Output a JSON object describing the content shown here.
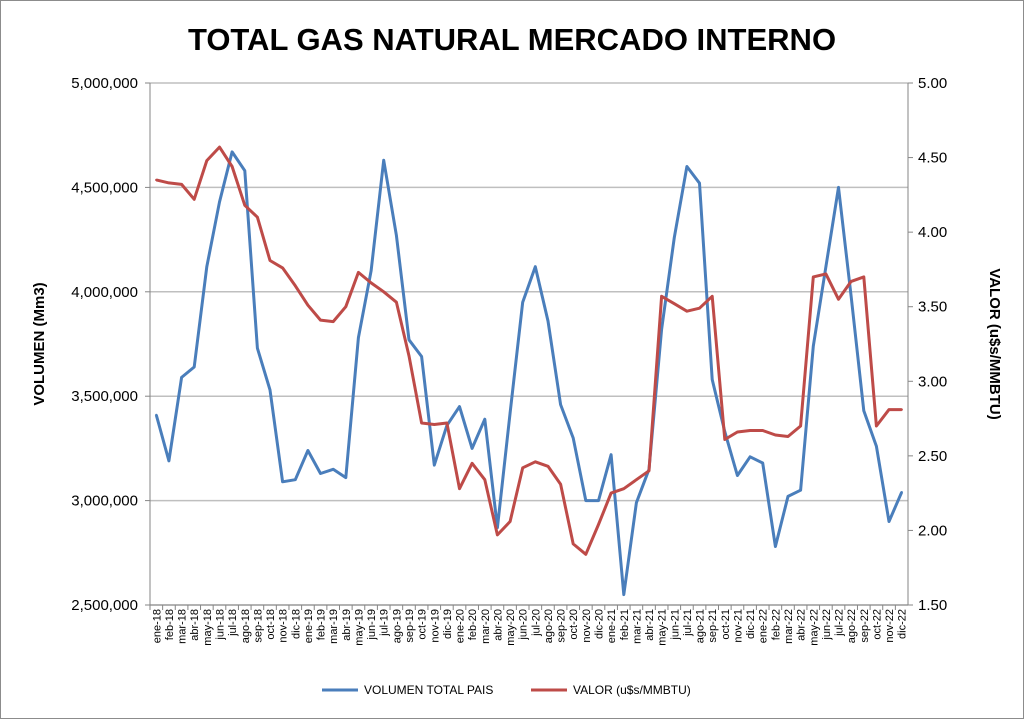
{
  "chart_data": {
    "type": "line",
    "title": "TOTAL GAS NATURAL MERCADO INTERNO",
    "ylabel": "VOLUMEN (Mm3)",
    "y2label": "VALOR (u$s/MMBTU)",
    "xlabel": "",
    "ylim": [
      2500000,
      5000000
    ],
    "y2lim": [
      1.5,
      5.0
    ],
    "yticks": [
      "2,500,000",
      "3,000,000",
      "3,500,000",
      "4,000,000",
      "4,500,000",
      "5,000,000"
    ],
    "y2ticks": [
      "1.50",
      "2.00",
      "2.50",
      "3.00",
      "3.50",
      "4.00",
      "4.50",
      "5.00"
    ],
    "grid": true,
    "legend_position": "bottom",
    "categories": [
      "ene-18",
      "feb-18",
      "mar-18",
      "abr-18",
      "may-18",
      "jun-18",
      "jul-18",
      "ago-18",
      "sep-18",
      "oct-18",
      "nov-18",
      "dic-18",
      "ene-19",
      "feb-19",
      "mar-19",
      "abr-19",
      "may-19",
      "jun-19",
      "jul-19",
      "ago-19",
      "sep-19",
      "oct-19",
      "nov-19",
      "dic-19",
      "ene-20",
      "feb-20",
      "mar-20",
      "abr-20",
      "may-20",
      "jun-20",
      "jul-20",
      "ago-20",
      "sep-20",
      "oct-20",
      "nov-20",
      "dic-20",
      "ene-21",
      "feb-21",
      "mar-21",
      "abr-21",
      "may-21",
      "jun-21",
      "jul-21",
      "ago-21",
      "sep-21",
      "oct-21",
      "nov-21",
      "dic-21",
      "ene-22",
      "feb-22",
      "mar-22",
      "abr-22",
      "may-22",
      "jun-22",
      "jul-22",
      "ago-22",
      "sep-22",
      "oct-22",
      "nov-22",
      "dic-22"
    ],
    "series": [
      {
        "name": "VOLUMEN TOTAL PAIS",
        "axis": "left",
        "color": "#4a7ebb",
        "values": [
          3410000,
          3190000,
          3590000,
          3640000,
          4120000,
          4430000,
          4670000,
          4580000,
          3730000,
          3530000,
          3090000,
          3100000,
          3240000,
          3130000,
          3150000,
          3110000,
          3780000,
          4100000,
          4630000,
          4270000,
          3770000,
          3690000,
          3170000,
          3360000,
          3450000,
          3250000,
          3390000,
          2870000,
          3420000,
          3950000,
          4120000,
          3860000,
          3460000,
          3300000,
          3000000,
          3000000,
          3220000,
          2550000,
          2990000,
          3150000,
          3820000,
          4260000,
          4600000,
          4520000,
          3580000,
          3330000,
          3120000,
          3210000,
          3180000,
          2780000,
          3020000,
          3050000,
          3740000,
          4120000,
          4500000,
          3980000,
          3430000,
          3260000,
          2900000,
          3040000
        ]
      },
      {
        "name": "VALOR (u$s/MMBTU)",
        "axis": "right",
        "color": "#be4b48",
        "values": [
          4.35,
          4.33,
          4.32,
          4.22,
          4.48,
          4.57,
          4.44,
          4.18,
          4.1,
          3.81,
          3.76,
          3.64,
          3.51,
          3.41,
          3.4,
          3.5,
          3.73,
          3.66,
          3.6,
          3.53,
          3.17,
          2.72,
          2.71,
          2.72,
          2.28,
          2.45,
          2.34,
          1.97,
          2.06,
          2.42,
          2.46,
          2.43,
          2.31,
          1.91,
          1.84,
          2.04,
          2.25,
          2.28,
          2.34,
          2.4,
          3.57,
          3.52,
          3.47,
          3.49,
          3.57,
          2.61,
          2.66,
          2.67,
          2.67,
          2.64,
          2.63,
          2.7,
          3.7,
          3.72,
          3.55,
          3.67,
          3.7,
          2.7,
          2.81,
          2.81
        ]
      }
    ]
  }
}
